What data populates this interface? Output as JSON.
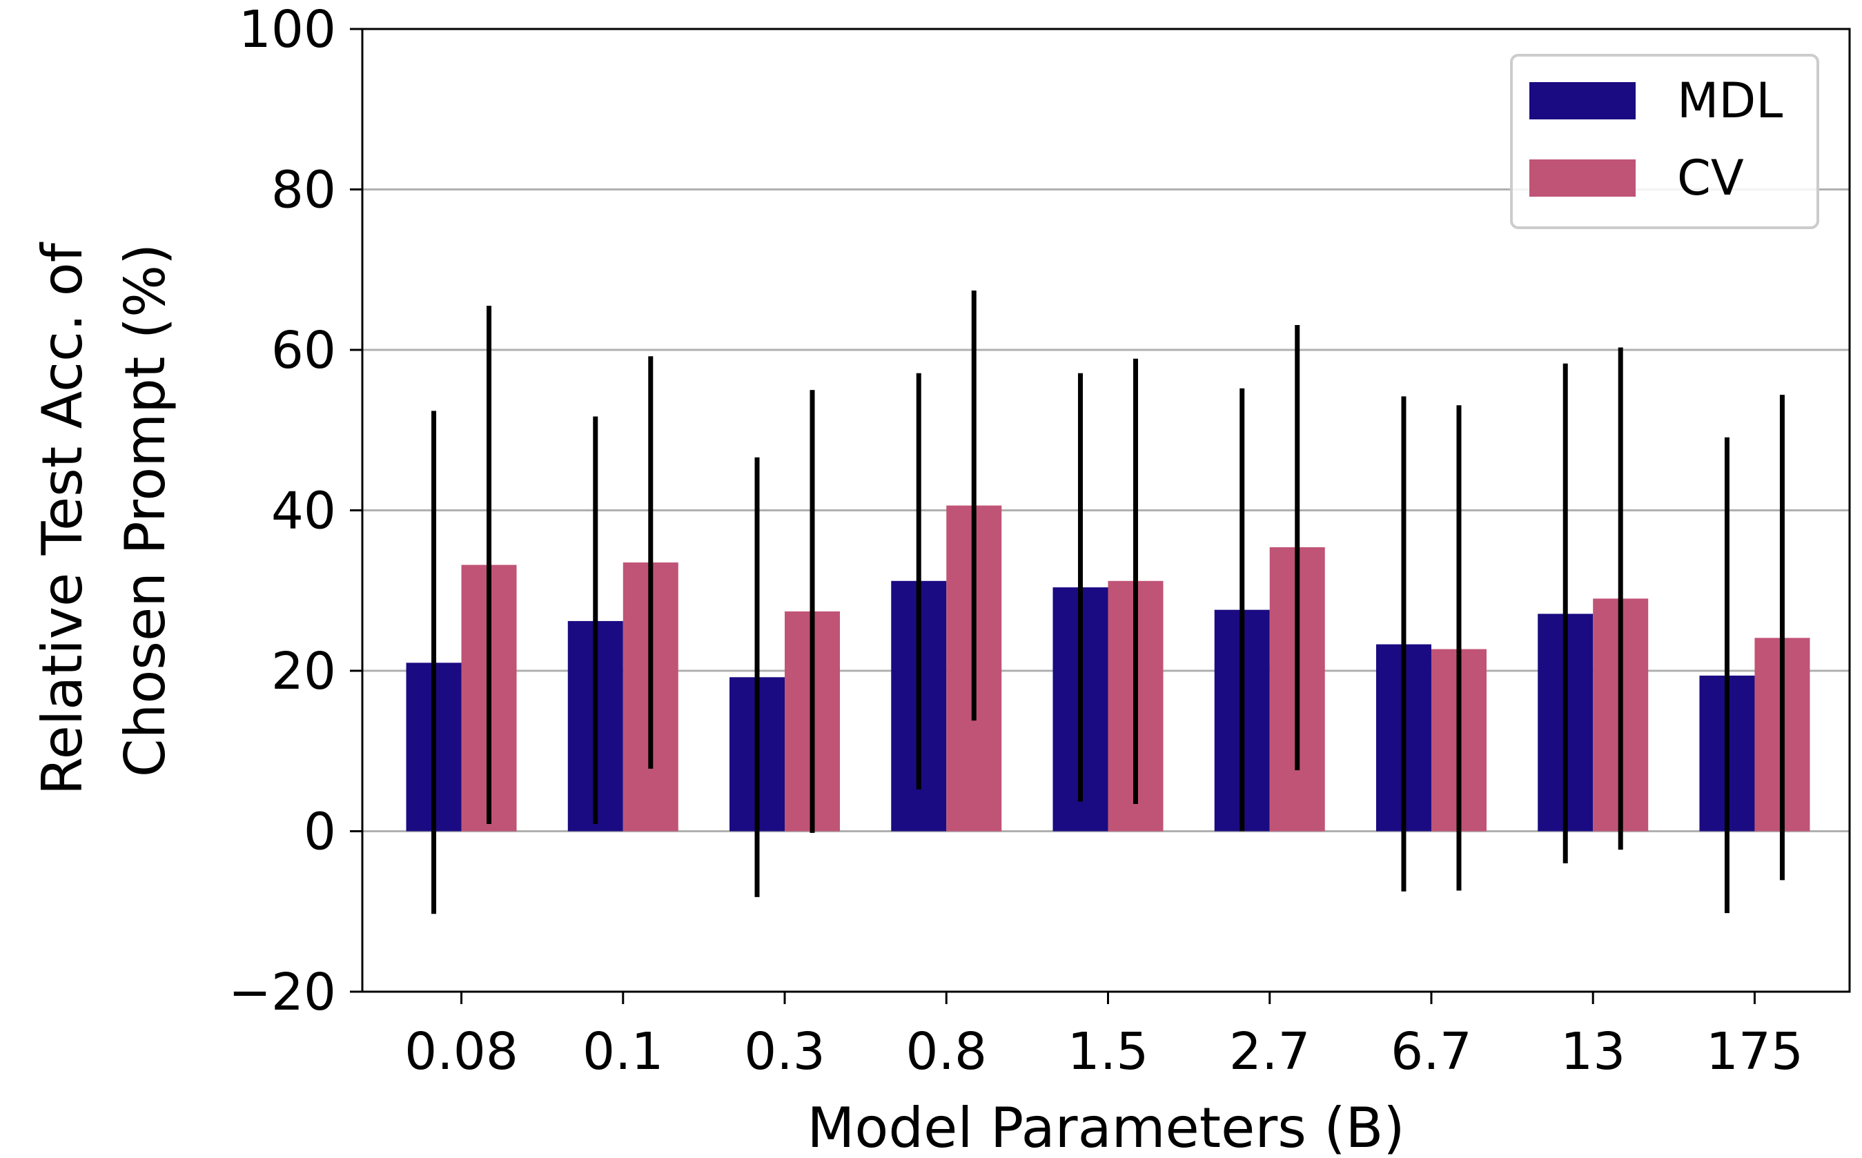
{
  "chart_data": {
    "type": "bar",
    "categories": [
      "0.08",
      "0.1",
      "0.3",
      "0.8",
      "1.5",
      "2.7",
      "6.7",
      "13",
      "175"
    ],
    "series": [
      {
        "name": "MDL",
        "color": "#1a0b82",
        "values": [
          21.0,
          26.2,
          19.2,
          31.2,
          30.4,
          27.6,
          23.3,
          27.1,
          19.4
        ],
        "err_low": [
          -10.3,
          0.9,
          -8.2,
          5.2,
          3.7,
          0.0,
          -7.5,
          -4.0,
          -10.2
        ],
        "err_high": [
          52.4,
          51.7,
          46.6,
          57.1,
          57.1,
          55.2,
          54.2,
          58.3,
          49.1
        ]
      },
      {
        "name": "CV",
        "color": "#c05476",
        "values": [
          33.2,
          33.5,
          27.4,
          40.6,
          31.2,
          35.4,
          22.7,
          29.0,
          24.1
        ],
        "err_low": [
          0.9,
          7.8,
          -0.2,
          13.8,
          3.4,
          7.6,
          -7.4,
          -2.3,
          -6.1
        ],
        "err_high": [
          65.5,
          59.2,
          55.0,
          67.4,
          58.9,
          63.1,
          53.1,
          60.3,
          54.4
        ]
      }
    ],
    "xlabel": "Model Parameters (B)",
    "ylabel": [
      "Relative Test Acc. of",
      "Chosen Prompt (%)"
    ],
    "ylim": [
      -20,
      100
    ],
    "yticks": [
      -20,
      0,
      20,
      40,
      60,
      80,
      100
    ],
    "ytick_labels": [
      "−20",
      "0",
      "20",
      "40",
      "60",
      "80",
      "100"
    ],
    "grid": "horizontal",
    "legend": "top-right"
  }
}
